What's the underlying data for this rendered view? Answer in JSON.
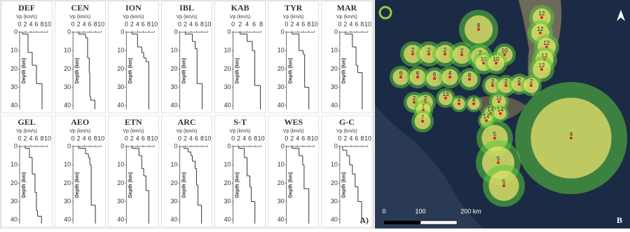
{
  "chart_data": [
    {
      "type": "step",
      "title": "DEF",
      "x_label": "Vp (km/s)",
      "y_label": "Depth (km)",
      "depth": [
        0,
        1,
        11,
        18,
        28
      ],
      "values": [
        1,
        3,
        4.5,
        6,
        8
      ],
      "xlim": [
        0,
        10
      ],
      "xticks": [
        0,
        2,
        4,
        6,
        8,
        10
      ],
      "ylim": [
        0,
        42
      ],
      "yticks": [
        0,
        10,
        20,
        30,
        40
      ]
    },
    {
      "type": "step",
      "title": "CEN",
      "x_label": "Vp (km/s)",
      "y_label": "Depth (km)",
      "depth": [
        0,
        1,
        3,
        14,
        22,
        35,
        37
      ],
      "values": [
        2,
        4.5,
        5.2,
        5.8,
        6,
        6.3,
        7.8
      ],
      "xlim": [
        0,
        10
      ],
      "xticks": [
        0,
        2,
        4,
        6,
        8,
        10
      ],
      "ylim": [
        0,
        42
      ],
      "yticks": [
        0,
        10,
        20,
        30,
        40
      ]
    },
    {
      "type": "step",
      "title": "ION",
      "x_label": "Vp (km/s)",
      "y_label": "Depth (km)",
      "depth": [
        0,
        1,
        8,
        11,
        14,
        16
      ],
      "values": [
        2,
        4,
        5.5,
        6.2,
        7,
        8
      ],
      "xlim": [
        0,
        10
      ],
      "xticks": [
        0,
        2,
        4,
        6,
        8,
        10
      ],
      "ylim": [
        0,
        42
      ],
      "yticks": [
        0,
        10,
        20,
        30,
        40
      ]
    },
    {
      "type": "step",
      "title": "IBL",
      "x_label": "Vp (km/s)",
      "y_label": "Depth (km)",
      "depth": [
        0,
        1,
        5,
        9,
        28
      ],
      "values": [
        2,
        4.5,
        5.5,
        6.2,
        8
      ],
      "xlim": [
        0,
        10
      ],
      "xticks": [
        0,
        2,
        4,
        6,
        8,
        10
      ],
      "ylim": [
        0,
        42
      ],
      "yticks": [
        0,
        10,
        20,
        30,
        40
      ]
    },
    {
      "type": "step",
      "title": "KAB",
      "x_label": "Vp (km/s)",
      "y_label": "Depth (km)",
      "depth": [
        0,
        1,
        5,
        10,
        29
      ],
      "values": [
        2,
        4,
        5.5,
        6.2,
        7.8
      ],
      "xlim": [
        0,
        8
      ],
      "xticks": [
        0,
        2,
        4,
        6,
        8
      ],
      "ylim": [
        0,
        42
      ],
      "yticks": [
        0,
        10,
        20,
        30,
        40
      ]
    },
    {
      "type": "step",
      "title": "TYR",
      "x_label": "Vp (km/s)",
      "y_label": "Depth (km)",
      "depth": [
        0,
        1,
        10,
        12,
        30
      ],
      "values": [
        2,
        4.5,
        6,
        6.5,
        8
      ],
      "xlim": [
        0,
        10
      ],
      "xticks": [
        0,
        2,
        4,
        6,
        8,
        10
      ],
      "ylim": [
        0,
        42
      ],
      "yticks": [
        0,
        10,
        20,
        30,
        40
      ]
    },
    {
      "type": "step",
      "title": "MAR",
      "x_label": "Vp (km/s)",
      "y_label": "Depth (km)",
      "depth": [
        0,
        1,
        8,
        18,
        22
      ],
      "values": [
        2,
        4.5,
        5.8,
        6.4,
        8
      ],
      "xlim": [
        0,
        10
      ],
      "xticks": [
        0,
        2,
        4,
        6,
        8,
        10
      ],
      "ylim": [
        0,
        42
      ],
      "yticks": [
        0,
        10,
        20,
        30,
        40
      ]
    },
    {
      "type": "step",
      "title": "GEL",
      "x_label": "Vp (km/s)",
      "y_label": "Depth (km)",
      "depth": [
        0,
        1,
        6,
        15,
        25,
        35,
        38
      ],
      "values": [
        2,
        3.5,
        4.5,
        5.5,
        6,
        6.4,
        7.8
      ],
      "xlim": [
        0,
        10
      ],
      "xticks": [
        0,
        2,
        4,
        6,
        8,
        10
      ],
      "ylim": [
        0,
        42
      ],
      "yticks": [
        0,
        10,
        20,
        30,
        40
      ]
    },
    {
      "type": "step",
      "title": "AEO",
      "x_label": "Vp (km/s)",
      "y_label": "Depth (km)",
      "depth": [
        0,
        1,
        4,
        6,
        10,
        32
      ],
      "values": [
        2,
        4.5,
        5.5,
        6,
        6.5,
        8
      ],
      "xlim": [
        0,
        10
      ],
      "xticks": [
        0,
        2,
        4,
        6,
        8,
        10
      ],
      "ylim": [
        0,
        42
      ],
      "yticks": [
        0,
        10,
        20,
        30,
        40
      ]
    },
    {
      "type": "step",
      "title": "ETN",
      "x_label": "Vp (km/s)",
      "y_label": "Depth (km)",
      "depth": [
        0,
        1,
        5,
        12,
        16,
        24
      ],
      "values": [
        2,
        4.5,
        5.5,
        6.2,
        7,
        8
      ],
      "xlim": [
        0,
        10
      ],
      "xticks": [
        0,
        2,
        4,
        6,
        8,
        10
      ],
      "ylim": [
        0,
        42
      ],
      "yticks": [
        0,
        10,
        20,
        30,
        40
      ]
    },
    {
      "type": "step",
      "title": "ARC",
      "x_label": "Vp (km/s)",
      "y_label": "Depth (km)",
      "depth": [
        0,
        1,
        3,
        5,
        8,
        12,
        21,
        32
      ],
      "values": [
        1.5,
        3,
        4,
        4.5,
        5.5,
        6,
        6.5,
        7.8
      ],
      "xlim": [
        0,
        10
      ],
      "xticks": [
        0,
        2,
        4,
        6,
        8,
        10
      ],
      "ylim": [
        0,
        42
      ],
      "yticks": [
        0,
        10,
        20,
        30,
        40
      ]
    },
    {
      "type": "step",
      "title": "S-T",
      "x_label": "Vp (km/s)",
      "y_label": "Depth (km)",
      "depth": [
        0,
        1,
        6,
        16,
        22,
        30
      ],
      "values": [
        2,
        4,
        5,
        6,
        6.5,
        7.8
      ],
      "xlim": [
        0,
        10
      ],
      "xticks": [
        0,
        2,
        4,
        6,
        8,
        10
      ],
      "ylim": [
        0,
        42
      ],
      "yticks": [
        0,
        10,
        20,
        30,
        40
      ]
    },
    {
      "type": "step",
      "title": "WES",
      "x_label": "Vp (km/s)",
      "y_label": "Depth (km)",
      "depth": [
        0,
        1,
        5,
        10,
        23
      ],
      "values": [
        2,
        4.5,
        5.8,
        6.3,
        8
      ],
      "xlim": [
        0,
        10
      ],
      "xticks": [
        0,
        2,
        4,
        6,
        8,
        10
      ],
      "ylim": [
        0,
        42
      ],
      "yticks": [
        0,
        10,
        20,
        30,
        40
      ]
    },
    {
      "type": "step",
      "title": "G-C",
      "x_label": "Vp (km/s)",
      "y_label": "Depth (km)",
      "depth": [
        0,
        2,
        5,
        10,
        15,
        22,
        30
      ],
      "values": [
        1,
        2.5,
        3.5,
        4.5,
        5.5,
        6.5,
        7.8
      ],
      "xlim": [
        0,
        10
      ],
      "xticks": [
        0,
        2,
        4,
        6,
        8,
        10
      ],
      "ylim": [
        0,
        42
      ],
      "yticks": [
        0,
        10,
        20,
        30,
        40
      ]
    }
  ],
  "panel_a_label": "A)",
  "map": {
    "panel_label": "B",
    "scale_labels": [
      "0",
      "100",
      "200 km"
    ],
    "sites": [
      "8",
      "12",
      "12",
      "12",
      "12",
      "12",
      "2",
      "2",
      "2",
      "2",
      "2",
      "10",
      "10",
      "10",
      "6",
      "6",
      "6",
      "4",
      "8",
      "2",
      "2",
      "2",
      "2",
      "13",
      "2",
      "2",
      "7",
      "7",
      "4",
      "4",
      "11",
      "14",
      "14",
      "14",
      "5",
      "5",
      "5",
      "4"
    ]
  }
}
